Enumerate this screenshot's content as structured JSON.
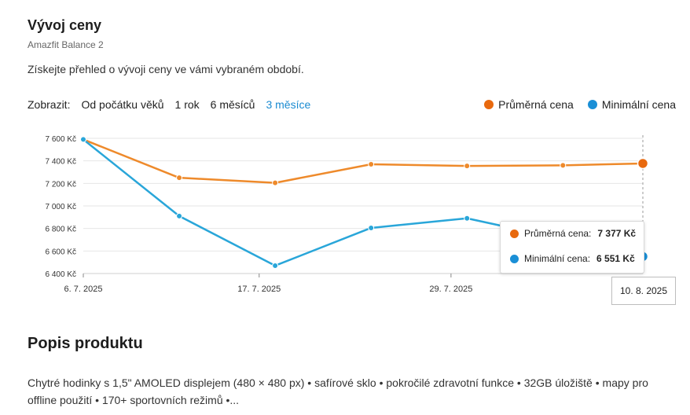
{
  "header": {
    "title": "Vývoj ceny",
    "subtitle": "Amazfit Balance 2",
    "intro": "Získejte přehled o vývoji ceny ve vámi vybraném období."
  },
  "controls": {
    "label": "Zobrazit:",
    "options": [
      "Od počátku věků",
      "1 rok",
      "6 měsíců",
      "3 měsíce"
    ],
    "active_index": 3
  },
  "legend": {
    "avg": "Průměrná cena",
    "min": "Minimální cena"
  },
  "colors": {
    "avg": "#ee8a2b",
    "min": "#29a6d9",
    "avg_dot": "#e8690e",
    "min_dot": "#1a8fd6",
    "active": "#1a8bd1"
  },
  "chart_data": {
    "type": "line",
    "x_dates": [
      "2025-07-06",
      "2025-07-12",
      "2025-07-18",
      "2025-07-24",
      "2025-07-30",
      "2025-08-05",
      "2025-08-10"
    ],
    "x_ticks": [
      {
        "date": "2025-07-06",
        "label": "6. 7. 2025"
      },
      {
        "date": "2025-07-17",
        "label": "17. 7. 2025"
      },
      {
        "date": "2025-07-29",
        "label": "29. 7. 2025"
      }
    ],
    "y_ticks": [
      "7 600 Kč",
      "7 400 Kč",
      "7 200 Kč",
      "7 000 Kč",
      "6 800 Kč",
      "6 600 Kč",
      "6 400 Kč"
    ],
    "y_values": [
      7600,
      7400,
      7200,
      7000,
      6800,
      6600,
      6400
    ],
    "ylim": [
      6400,
      7600
    ],
    "series": [
      {
        "name": "Průměrná cena",
        "key": "avg",
        "values": [
          7590,
          7250,
          7205,
          7370,
          7355,
          7360,
          7377
        ]
      },
      {
        "name": "Minimální cena",
        "key": "min",
        "values": [
          7590,
          6910,
          6470,
          6805,
          6890,
          null,
          6551
        ]
      }
    ],
    "grid": true
  },
  "tooltip": {
    "avg_label": "Průměrná cena:",
    "avg_value": "7 377 Kč",
    "min_label": "Minimální cena:",
    "min_value": "6 551 Kč",
    "date": "10. 8. 2025"
  },
  "product": {
    "heading": "Popis produktu",
    "description": "Chytré hodinky s 1,5\" AMOLED displejem (480 × 480 px) • safírové sklo • pokročilé zdravotní funkce • 32GB úložiště • mapy pro offline použití • 170+ sportovních režimů •..."
  }
}
